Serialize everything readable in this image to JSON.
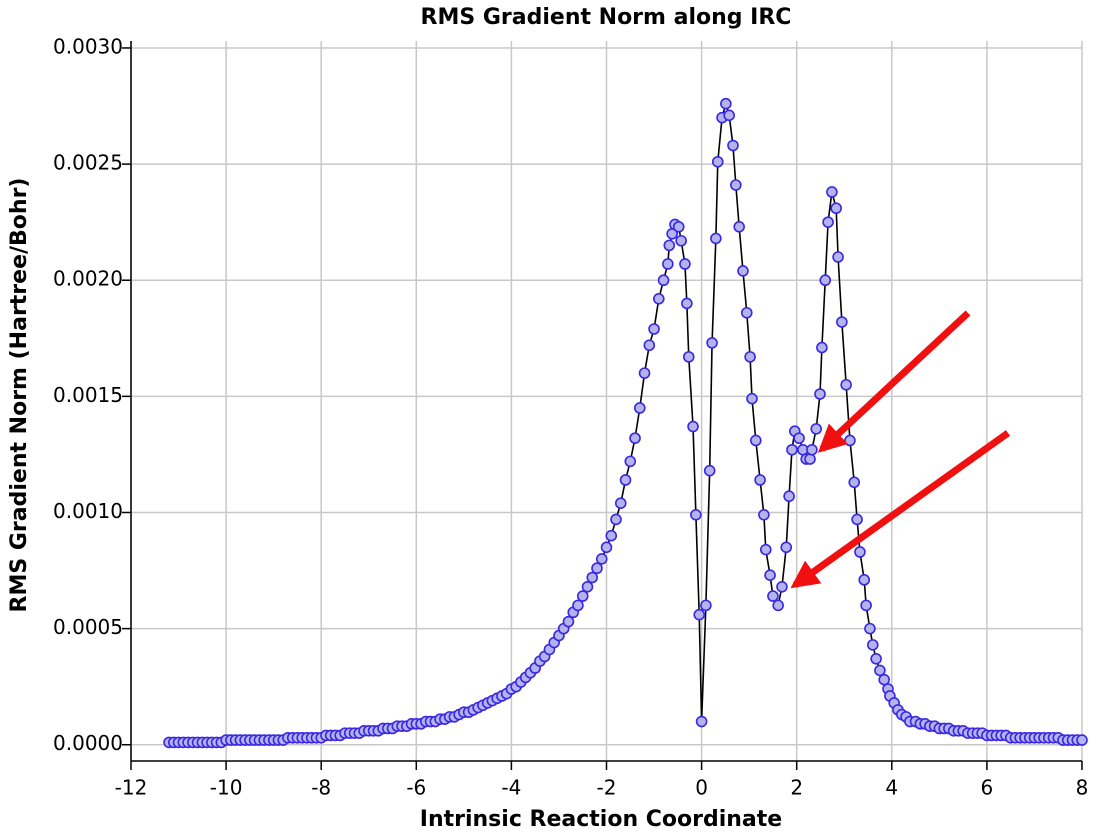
{
  "chart_data": {
    "type": "line",
    "title": "RMS Gradient Norm along IRC",
    "x_label": "Intrinsic Reaction Coordinate",
    "y_label": "RMS Gradient Norm (Hartree/Bohr)",
    "xlim": [
      -12,
      8
    ],
    "xticks": [
      -12,
      -10,
      -8,
      -6,
      -4,
      -2,
      0,
      2,
      4,
      6,
      8
    ],
    "ylim": [
      -7e-05,
      0.00303
    ],
    "yticks": [
      {
        "value": 0,
        "label": "0.0000"
      },
      {
        "value": 0.0005,
        "label": "0.0005"
      },
      {
        "value": 0.001,
        "label": "0.0010"
      },
      {
        "value": 0.0015,
        "label": "0.0015"
      },
      {
        "value": 0.002,
        "label": "0.0020"
      },
      {
        "value": 0.0025,
        "label": "0.0025"
      },
      {
        "value": 0.003,
        "label": "0.0030"
      }
    ],
    "grid": true,
    "color": "#000000",
    "marker_fill": "#b4b4ec",
    "marker_edge": "#3a26e4",
    "x": [
      -11.2,
      -11.1,
      -11,
      -10.9,
      -10.8,
      -10.7,
      -10.6,
      -10.5,
      -10.4,
      -10.3,
      -10.2,
      -10.1,
      -10,
      -9.9,
      -9.8,
      -9.7,
      -9.6,
      -9.5,
      -9.4,
      -9.3,
      -9.2,
      -9.1,
      -9,
      -8.9,
      -8.8,
      -8.7,
      -8.6,
      -8.5,
      -8.4,
      -8.3,
      -8.2,
      -8.1,
      -8,
      -7.9,
      -7.8,
      -7.7,
      -7.6,
      -7.5,
      -7.4,
      -7.3,
      -7.2,
      -7.1,
      -7,
      -6.9,
      -6.8,
      -6.7,
      -6.6,
      -6.5,
      -6.4,
      -6.3,
      -6.2,
      -6.1,
      -6,
      -5.9,
      -5.8,
      -5.7,
      -5.6,
      -5.5,
      -5.4,
      -5.3,
      -5.2,
      -5.1,
      -5,
      -4.9,
      -4.8,
      -4.7,
      -4.6,
      -4.5,
      -4.4,
      -4.3,
      -4.2,
      -4.1,
      -4,
      -3.9,
      -3.8,
      -3.7,
      -3.6,
      -3.5,
      -3.4,
      -3.3,
      -3.2,
      -3.1,
      -3,
      -2.9,
      -2.8,
      -2.7,
      -2.6,
      -2.5,
      -2.4,
      -2.3,
      -2.2,
      -2.1,
      -2,
      -1.9,
      -1.8,
      -1.7,
      -1.6,
      -1.5,
      -1.4,
      -1.3,
      -1.2,
      -1.1,
      -1,
      -0.9,
      -0.8,
      -0.71,
      -0.68,
      -0.62,
      -0.56,
      -0.48,
      -0.43,
      -0.35,
      -0.31,
      -0.27,
      -0.18,
      -0.12,
      -0.05,
      0,
      0.09,
      0.17,
      0.22,
      0.3,
      0.34,
      0.43,
      0.51,
      0.58,
      0.66,
      0.72,
      0.79,
      0.87,
      0.95,
      1.02,
      1.06,
      1.14,
      1.23,
      1.31,
      1.35,
      1.44,
      1.5,
      1.61,
      1.69,
      1.78,
      1.84,
      1.9,
      1.96,
      2.05,
      2.13,
      2.2,
      2.28,
      2.32,
      2.41,
      2.49,
      2.53,
      2.6,
      2.66,
      2.74,
      2.83,
      2.87,
      2.95,
      3.04,
      3.12,
      3.21,
      3.27,
      3.33,
      3.42,
      3.46,
      3.54,
      3.6,
      3.67,
      3.75,
      3.84,
      3.92,
      3.96,
      4.05,
      4.13,
      4.21,
      4.3,
      4.38,
      4.5,
      4.6,
      4.7,
      4.8,
      4.9,
      5,
      5.1,
      5.2,
      5.3,
      5.4,
      5.5,
      5.6,
      5.7,
      5.8,
      5.9,
      6,
      6.1,
      6.2,
      6.3,
      6.4,
      6.5,
      6.6,
      6.7,
      6.8,
      6.9,
      7,
      7.1,
      7.2,
      7.3,
      7.4,
      7.5,
      7.6,
      7.7,
      7.8,
      7.9,
      8
    ],
    "values": [
      1e-05,
      1e-05,
      1e-05,
      1e-05,
      1e-05,
      1e-05,
      1e-05,
      1e-05,
      1e-05,
      1e-05,
      1e-05,
      1e-05,
      2e-05,
      2e-05,
      2e-05,
      2e-05,
      2e-05,
      2e-05,
      2e-05,
      2e-05,
      2e-05,
      2e-05,
      2e-05,
      2e-05,
      2e-05,
      3e-05,
      3e-05,
      3e-05,
      3e-05,
      3e-05,
      3e-05,
      3e-05,
      3e-05,
      4e-05,
      4e-05,
      4e-05,
      4e-05,
      5e-05,
      5e-05,
      5e-05,
      5e-05,
      6e-05,
      6e-05,
      6e-05,
      6e-05,
      7e-05,
      7e-05,
      7e-05,
      8e-05,
      8e-05,
      8e-05,
      9e-05,
      9e-05,
      9e-05,
      0.0001,
      0.0001,
      0.0001,
      0.00011,
      0.00011,
      0.00012,
      0.00012,
      0.00013,
      0.00014,
      0.00014,
      0.00015,
      0.00016,
      0.00017,
      0.00018,
      0.00019,
      0.0002,
      0.00021,
      0.00022,
      0.00024,
      0.00025,
      0.00027,
      0.00029,
      0.00031,
      0.00033,
      0.00036,
      0.00038,
      0.00041,
      0.00044,
      0.00047,
      0.0005,
      0.00053,
      0.00057,
      0.0006,
      0.00064,
      0.00068,
      0.00072,
      0.00076,
      0.0008,
      0.00085,
      0.0009,
      0.00097,
      0.00104,
      0.00114,
      0.00122,
      0.00132,
      0.00145,
      0.0016,
      0.00172,
      0.00179,
      0.00192,
      0.002,
      0.00207,
      0.00215,
      0.0022,
      0.00224,
      0.00223,
      0.00217,
      0.00207,
      0.0019,
      0.00167,
      0.00137,
      0.00099,
      0.00056,
      0.0001,
      0.0006,
      0.00118,
      0.00173,
      0.00218,
      0.00251,
      0.0027,
      0.00276,
      0.00271,
      0.00258,
      0.00241,
      0.00223,
      0.00204,
      0.00186,
      0.00167,
      0.00149,
      0.00131,
      0.00114,
      0.00099,
      0.00084,
      0.00073,
      0.00064,
      0.0006,
      0.00068,
      0.00085,
      0.00107,
      0.00127,
      0.00135,
      0.00132,
      0.00127,
      0.00123,
      0.00123,
      0.00127,
      0.00136,
      0.00151,
      0.00171,
      0.002,
      0.00225,
      0.00238,
      0.00231,
      0.0021,
      0.00182,
      0.00155,
      0.00131,
      0.00113,
      0.00097,
      0.00083,
      0.00071,
      0.0006,
      0.0005,
      0.00043,
      0.00037,
      0.00032,
      0.00028,
      0.00024,
      0.00021,
      0.00018,
      0.00015,
      0.00013,
      0.00012,
      0.0001,
      0.0001,
      9e-05,
      9e-05,
      8e-05,
      8e-05,
      7e-05,
      7e-05,
      7e-05,
      6e-05,
      6e-05,
      6e-05,
      5e-05,
      5e-05,
      5e-05,
      5e-05,
      4e-05,
      4e-05,
      4e-05,
      4e-05,
      4e-05,
      3e-05,
      3e-05,
      3e-05,
      3e-05,
      3e-05,
      3e-05,
      3e-05,
      3e-05,
      3e-05,
      3e-05,
      3e-05,
      2e-05,
      2e-05,
      2e-05,
      2e-05,
      2e-05
    ]
  }
}
